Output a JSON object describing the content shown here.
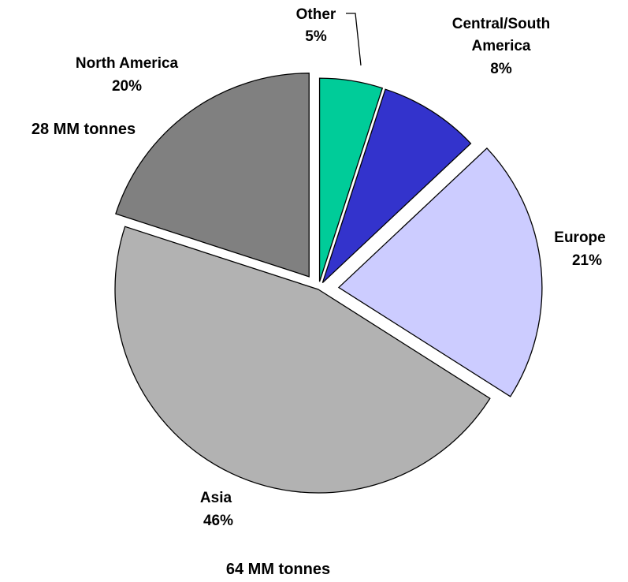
{
  "chart_data": {
    "type": "pie",
    "slices": [
      {
        "name": "Other",
        "value": 5,
        "color": "#00cc99",
        "pct": "5%"
      },
      {
        "name": "Central/South America",
        "value": 8,
        "color": "#3333cc",
        "pct": "8%"
      },
      {
        "name": "Europe",
        "value": 21,
        "color": "#ccccff",
        "pct": "21%"
      },
      {
        "name": "Asia",
        "value": 46,
        "color": "#b2b2b2",
        "pct": "46%"
      },
      {
        "name": "North America",
        "value": 20,
        "color": "#808080",
        "pct": "20%"
      }
    ],
    "annotations": [
      "28 MM tonnes",
      "64 MM tonnes"
    ],
    "exploded": true,
    "start": "top, clockwise"
  }
}
